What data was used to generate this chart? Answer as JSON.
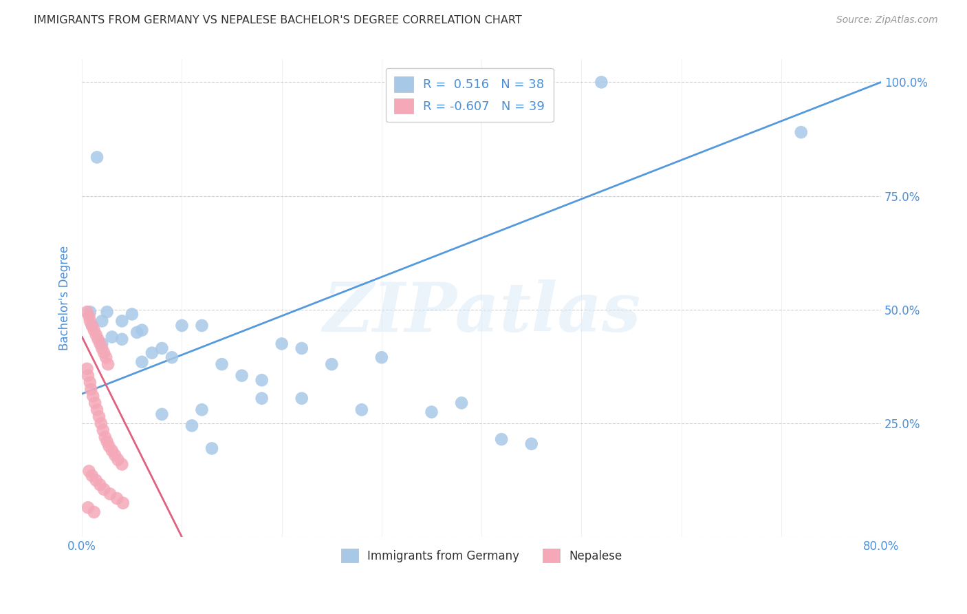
{
  "title": "IMMIGRANTS FROM GERMANY VS NEPALESE BACHELOR'S DEGREE CORRELATION CHART",
  "source": "Source: ZipAtlas.com",
  "ylabel": "Bachelor's Degree",
  "xlim": [
    0.0,
    0.8
  ],
  "ylim": [
    0.0,
    1.05
  ],
  "xticks": [
    0.0,
    0.1,
    0.2,
    0.3,
    0.4,
    0.5,
    0.6,
    0.7,
    0.8
  ],
  "xticklabels": [
    "0.0%",
    "",
    "",
    "",
    "",
    "",
    "",
    "",
    "80.0%"
  ],
  "yticks": [
    0.0,
    0.25,
    0.5,
    0.75,
    1.0
  ],
  "yticklabels_right": [
    "",
    "25.0%",
    "50.0%",
    "75.0%",
    "100.0%"
  ],
  "r_blue": 0.516,
  "n_blue": 38,
  "r_pink": -0.607,
  "n_pink": 39,
  "blue_color": "#a8c8e8",
  "pink_color": "#f4a8b8",
  "blue_line_color": "#5599dd",
  "pink_line_color": "#e06080",
  "watermark_text": "ZIPatlas",
  "background_color": "#ffffff",
  "grid_color": "#cccccc",
  "title_color": "#333333",
  "axis_label_color": "#4a90d9",
  "tick_label_color": "#4a90d9",
  "blue_scatter_x": [
    0.52,
    0.72,
    0.008,
    0.02,
    0.05,
    0.01,
    0.03,
    0.06,
    0.02,
    0.04,
    0.07,
    0.1,
    0.12,
    0.08,
    0.06,
    0.09,
    0.14,
    0.16,
    0.18,
    0.22,
    0.2,
    0.25,
    0.18,
    0.12,
    0.3,
    0.28,
    0.35,
    0.38,
    0.42,
    0.22,
    0.015,
    0.025,
    0.04,
    0.055,
    0.08,
    0.11,
    0.13,
    0.45
  ],
  "blue_scatter_y": [
    1.0,
    0.89,
    0.495,
    0.475,
    0.49,
    0.465,
    0.44,
    0.455,
    0.425,
    0.435,
    0.405,
    0.465,
    0.465,
    0.415,
    0.385,
    0.395,
    0.38,
    0.355,
    0.345,
    0.415,
    0.425,
    0.38,
    0.305,
    0.28,
    0.395,
    0.28,
    0.275,
    0.295,
    0.215,
    0.305,
    0.835,
    0.495,
    0.475,
    0.45,
    0.27,
    0.245,
    0.195,
    0.205
  ],
  "pink_scatter_x": [
    0.005,
    0.007,
    0.008,
    0.01,
    0.012,
    0.014,
    0.016,
    0.018,
    0.02,
    0.022,
    0.024,
    0.026,
    0.005,
    0.006,
    0.008,
    0.009,
    0.011,
    0.013,
    0.015,
    0.017,
    0.019,
    0.021,
    0.023,
    0.025,
    0.027,
    0.03,
    0.033,
    0.036,
    0.04,
    0.007,
    0.01,
    0.014,
    0.018,
    0.022,
    0.028,
    0.035,
    0.041,
    0.006,
    0.012
  ],
  "pink_scatter_y": [
    0.495,
    0.485,
    0.475,
    0.465,
    0.455,
    0.445,
    0.435,
    0.425,
    0.415,
    0.405,
    0.395,
    0.38,
    0.37,
    0.355,
    0.34,
    0.325,
    0.31,
    0.295,
    0.28,
    0.265,
    0.25,
    0.235,
    0.22,
    0.21,
    0.2,
    0.19,
    0.18,
    0.17,
    0.16,
    0.145,
    0.135,
    0.125,
    0.115,
    0.105,
    0.095,
    0.085,
    0.075,
    0.065,
    0.055
  ],
  "blue_line_x": [
    0.0,
    0.8
  ],
  "blue_line_y": [
    0.315,
    1.0
  ],
  "pink_line_x": [
    0.0,
    0.1
  ],
  "pink_line_y": [
    0.44,
    0.0
  ]
}
